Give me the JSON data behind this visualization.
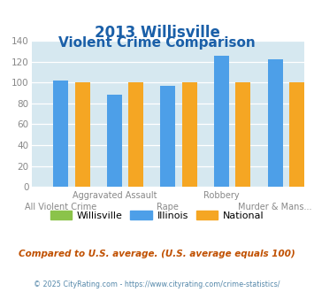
{
  "title_line1": "2013 Willisville",
  "title_line2": "Violent Crime Comparison",
  "willisville": [
    0,
    0,
    0,
    0,
    0
  ],
  "illinois": [
    102,
    88,
    97,
    126,
    122
  ],
  "national": [
    100,
    100,
    100,
    100,
    100
  ],
  "color_willisville": "#8bc34a",
  "color_illinois": "#4d9fe8",
  "color_national": "#f5a623",
  "bg_color": "#d6e8f0",
  "title_color": "#1a5fa8",
  "footer_color": "#c05000",
  "credit_color": "#5588aa",
  "tick_label_color": "#888888",
  "ylim": [
    0,
    140
  ],
  "yticks": [
    0,
    20,
    40,
    60,
    80,
    100,
    120,
    140
  ],
  "footer_text": "Compared to U.S. average. (U.S. average equals 100)",
  "credit_text": "© 2025 CityRating.com - https://www.cityrating.com/crime-statistics/",
  "legend_labels": [
    "Willisville",
    "Illinois",
    "National"
  ],
  "top_labels": [
    "",
    "Aggravated Assault",
    "",
    "Robbery",
    ""
  ],
  "bottom_labels": [
    "All Violent Crime",
    "",
    "Rape",
    "",
    "Murder & Mans..."
  ]
}
